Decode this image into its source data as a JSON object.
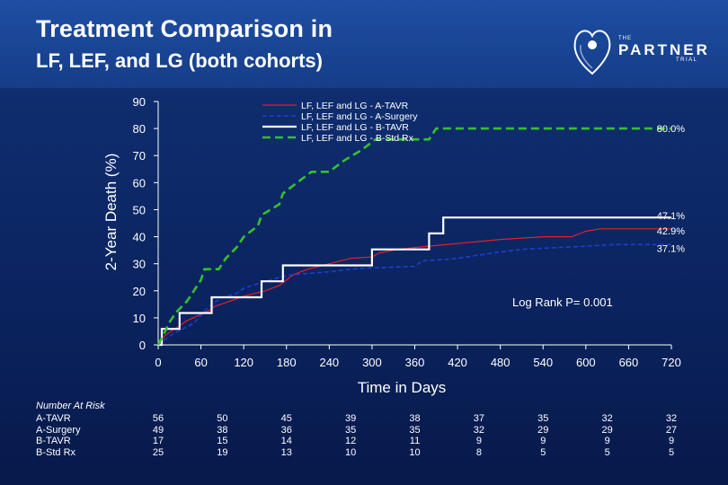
{
  "title_line1": "Treatment Comparison in",
  "title_line2": "LF, LEF, and LG (both cohorts)",
  "logo": {
    "the": "THE",
    "partner": "PARTNER",
    "trial": "TRIAL"
  },
  "annotation": "Log Rank P= 0.001",
  "risk_table": {
    "title": "Number At Risk",
    "rows": [
      {
        "label": "A-TAVR",
        "values": [
          "56",
          "50",
          "45",
          "39",
          "38",
          "37",
          "35",
          "32",
          "32"
        ]
      },
      {
        "label": "A-Surgery",
        "values": [
          "49",
          "38",
          "36",
          "35",
          "35",
          "32",
          "29",
          "29",
          "27"
        ]
      },
      {
        "label": "B-TAVR",
        "values": [
          "17",
          "15",
          "14",
          "12",
          "11",
          "9",
          "9",
          "9",
          "9"
        ]
      },
      {
        "label": "B-Std Rx",
        "values": [
          "25",
          "19",
          "13",
          "10",
          "10",
          "8",
          "5",
          "5",
          "5"
        ]
      }
    ]
  },
  "chart_data": {
    "type": "line",
    "title": "Treatment Comparison in LF, LEF, and LG (both cohorts)",
    "xlabel": "Time in Days",
    "ylabel": "2-Year Death (%)",
    "xlim": [
      0,
      720
    ],
    "ylim": [
      0,
      90
    ],
    "x_ticks": [
      0,
      60,
      120,
      180,
      240,
      300,
      360,
      420,
      480,
      540,
      600,
      660,
      720
    ],
    "y_ticks": [
      0,
      10,
      20,
      30,
      40,
      50,
      60,
      70,
      80,
      90
    ],
    "risk_x": [
      0,
      90,
      180,
      270,
      360,
      450,
      540,
      630,
      720
    ],
    "series": [
      {
        "name": "LF, LEF and LG - A-TAVR",
        "color": "#e0202a",
        "width": 1.2,
        "dash": "",
        "end_label": "42.9%",
        "points": [
          [
            0,
            0
          ],
          [
            5,
            1.8
          ],
          [
            10,
            3.6
          ],
          [
            20,
            5.4
          ],
          [
            30,
            7.1
          ],
          [
            40,
            8.9
          ],
          [
            55,
            10.7
          ],
          [
            70,
            12.5
          ],
          [
            80,
            14.3
          ],
          [
            100,
            16.1
          ],
          [
            120,
            18
          ],
          [
            150,
            20
          ],
          [
            170,
            22
          ],
          [
            190,
            26
          ],
          [
            210,
            28
          ],
          [
            240,
            30
          ],
          [
            270,
            32
          ],
          [
            300,
            32.5
          ],
          [
            310,
            34
          ],
          [
            330,
            35
          ],
          [
            360,
            36
          ],
          [
            380,
            36.5
          ],
          [
            400,
            37
          ],
          [
            440,
            38
          ],
          [
            480,
            39
          ],
          [
            540,
            40
          ],
          [
            580,
            40
          ],
          [
            590,
            41
          ],
          [
            600,
            42
          ],
          [
            620,
            42.9
          ],
          [
            720,
            42.9
          ]
        ]
      },
      {
        "name": "LF, LEF and LG - A-Surgery",
        "color": "#1a3fd0",
        "width": 1.6,
        "dash": "5,3",
        "end_label": "37.1%",
        "points": [
          [
            0,
            0
          ],
          [
            10,
            2
          ],
          [
            20,
            4
          ],
          [
            35,
            6
          ],
          [
            50,
            8
          ],
          [
            65,
            12.5
          ],
          [
            75,
            15
          ],
          [
            90,
            17.5
          ],
          [
            110,
            19
          ],
          [
            120,
            21
          ],
          [
            170,
            25
          ],
          [
            190,
            26
          ],
          [
            240,
            27
          ],
          [
            270,
            28
          ],
          [
            300,
            28.5
          ],
          [
            360,
            29
          ],
          [
            370,
            31
          ],
          [
            420,
            32
          ],
          [
            470,
            34
          ],
          [
            500,
            35
          ],
          [
            520,
            35.5
          ],
          [
            600,
            36.5
          ],
          [
            640,
            37.1
          ],
          [
            720,
            37.1
          ]
        ]
      },
      {
        "name": "LF, LEF and LG - B-TAVR",
        "color": "#ffffff",
        "width": 2.2,
        "dash": "",
        "end_label": "47.1%",
        "points": [
          [
            0,
            0
          ],
          [
            5,
            0
          ],
          [
            5,
            5.9
          ],
          [
            30,
            5.9
          ],
          [
            30,
            11.8
          ],
          [
            75,
            11.8
          ],
          [
            75,
            17.6
          ],
          [
            145,
            17.6
          ],
          [
            145,
            23.5
          ],
          [
            175,
            23.5
          ],
          [
            175,
            29.4
          ],
          [
            300,
            29.4
          ],
          [
            300,
            35.3
          ],
          [
            380,
            35.3
          ],
          [
            380,
            41.2
          ],
          [
            400,
            41.2
          ],
          [
            400,
            47.1
          ],
          [
            720,
            47.1
          ]
        ]
      },
      {
        "name": "LF, LEF and LG - B-Std Rx",
        "color": "#35c02c",
        "width": 2.6,
        "dash": "9,5",
        "end_label": "80.0%",
        "points": [
          [
            0,
            0
          ],
          [
            8,
            4
          ],
          [
            15,
            8
          ],
          [
            25,
            12
          ],
          [
            40,
            16
          ],
          [
            50,
            20
          ],
          [
            60,
            24
          ],
          [
            65,
            28
          ],
          [
            85,
            28
          ],
          [
            95,
            32
          ],
          [
            110,
            36
          ],
          [
            120,
            40
          ],
          [
            140,
            44
          ],
          [
            145,
            48
          ],
          [
            170,
            52
          ],
          [
            175,
            56
          ],
          [
            195,
            60
          ],
          [
            215,
            64
          ],
          [
            240,
            64
          ],
          [
            260,
            68
          ],
          [
            285,
            72
          ],
          [
            305,
            76
          ],
          [
            350,
            76
          ],
          [
            380,
            76
          ],
          [
            390,
            80
          ],
          [
            720,
            80
          ]
        ]
      }
    ]
  }
}
